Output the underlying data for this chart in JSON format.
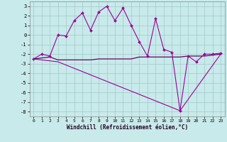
{
  "xlabel": "Windchill (Refroidissement éolien,°C)",
  "xlim": [
    -0.5,
    23.5
  ],
  "ylim": [
    -8.5,
    3.5
  ],
  "yticks": [
    -8,
    -7,
    -6,
    -5,
    -4,
    -3,
    -2,
    -1,
    0,
    1,
    2,
    3
  ],
  "xticks": [
    0,
    1,
    2,
    3,
    4,
    5,
    6,
    7,
    8,
    9,
    10,
    11,
    12,
    13,
    14,
    15,
    16,
    17,
    18,
    19,
    20,
    21,
    22,
    23
  ],
  "background_color": "#c8eaea",
  "grid_color": "#a0c8c8",
  "line_color": "#990099",
  "line_color2": "#660066",
  "line1_x": [
    0,
    1,
    2,
    3,
    4,
    5,
    6,
    7,
    8,
    9,
    10,
    11,
    12,
    13,
    14,
    15,
    16,
    17,
    18,
    19,
    20,
    21,
    22,
    23
  ],
  "line1_y": [
    -2.5,
    -2.0,
    -2.2,
    0.0,
    -0.1,
    1.5,
    2.3,
    0.5,
    2.4,
    3.0,
    1.5,
    2.8,
    1.0,
    -0.7,
    -2.2,
    1.7,
    -1.5,
    -1.8,
    -7.9,
    -2.2,
    -2.8,
    -2.0,
    -2.0,
    -1.9
  ],
  "line2_x": [
    0,
    1,
    2,
    3,
    4,
    5,
    6,
    7,
    8,
    9,
    10,
    11,
    12,
    13,
    14,
    15,
    16,
    17,
    18,
    19,
    20,
    21,
    22,
    23
  ],
  "line2_y": [
    -2.5,
    -2.4,
    -2.3,
    -2.6,
    -2.6,
    -2.6,
    -2.6,
    -2.6,
    -2.5,
    -2.5,
    -2.5,
    -2.5,
    -2.5,
    -2.3,
    -2.3,
    -2.3,
    -2.3,
    -2.3,
    -2.3,
    -2.2,
    -2.2,
    -2.2,
    -2.1,
    -2.0
  ],
  "line3_x": [
    0,
    3,
    18,
    23
  ],
  "line3_y": [
    -2.5,
    -2.8,
    -7.9,
    -2.0
  ]
}
